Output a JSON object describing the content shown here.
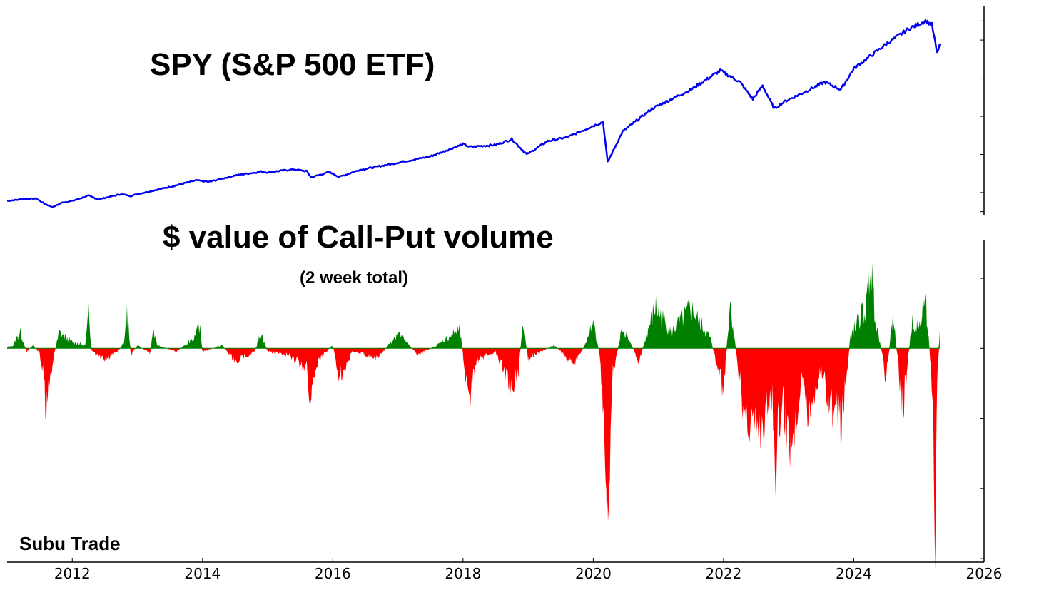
{
  "watermark": "Subu Trade",
  "chart_data": [
    {
      "type": "line",
      "title": "SPY (S&P 500 ETF)",
      "color": "#0000ee",
      "xlim": [
        2011.0,
        2026.0
      ],
      "ylim": [
        90,
        640
      ],
      "x": [
        2011.0,
        2011.25,
        2011.45,
        2011.58,
        2011.7,
        2011.85,
        2012.0,
        2012.25,
        2012.4,
        2012.75,
        2012.9,
        2013.0,
        2013.5,
        2013.9,
        2014.1,
        2014.5,
        2014.9,
        2015.0,
        2015.4,
        2015.6,
        2015.67,
        2015.95,
        2016.1,
        2016.4,
        2016.9,
        2017.5,
        2018.0,
        2018.1,
        2018.5,
        2018.75,
        2018.98,
        2019.3,
        2019.6,
        2020.0,
        2020.15,
        2020.22,
        2020.45,
        2020.9,
        2021.5,
        2021.95,
        2022.25,
        2022.45,
        2022.6,
        2022.78,
        2022.95,
        2023.2,
        2023.55,
        2023.8,
        2024.0,
        2024.5,
        2024.85,
        2025.1,
        2025.2,
        2025.28,
        2025.32
      ],
      "y": [
        128,
        133,
        134,
        120,
        112,
        124,
        128,
        142,
        132,
        146,
        141,
        146,
        165,
        182,
        178,
        195,
        205,
        203,
        211,
        206,
        190,
        204,
        191,
        209,
        225,
        245,
        277,
        270,
        275,
        290,
        250,
        285,
        295,
        325,
        335,
        230,
        310,
        370,
        420,
        470,
        440,
        395,
        430,
        370,
        390,
        410,
        440,
        420,
        475,
        540,
        580,
        600,
        590,
        515,
        540
      ]
    },
    {
      "type": "area",
      "title": "$ value of Call-Put volume",
      "subtitle": "(2 week total)",
      "positive_color": "#008000",
      "negative_color": "#ff0000",
      "xlim": [
        2011.0,
        2026.0
      ],
      "ylim": [
        -3.05,
        1.55
      ],
      "xticks": [
        2012,
        2014,
        2016,
        2018,
        2020,
        2022,
        2024,
        2026
      ],
      "x": [
        2011.0,
        2011.1,
        2011.2,
        2011.3,
        2011.4,
        2011.5,
        2011.55,
        2011.6,
        2011.65,
        2011.72,
        2011.8,
        2012.0,
        2012.2,
        2012.25,
        2012.3,
        2012.5,
        2012.7,
        2012.8,
        2012.84,
        2012.9,
        2013.0,
        2013.2,
        2013.24,
        2013.3,
        2013.6,
        2013.9,
        2013.95,
        2014.0,
        2014.3,
        2014.5,
        2014.8,
        2014.9,
        2015.0,
        2015.3,
        2015.6,
        2015.66,
        2015.7,
        2015.8,
        2016.0,
        2016.1,
        2016.3,
        2016.7,
        2017.0,
        2017.3,
        2017.6,
        2017.95,
        2018.05,
        2018.1,
        2018.2,
        2018.5,
        2018.75,
        2018.85,
        2018.92,
        2019.0,
        2019.4,
        2019.7,
        2019.9,
        2020.0,
        2020.1,
        2020.18,
        2020.22,
        2020.3,
        2020.45,
        2020.7,
        2020.95,
        2021.2,
        2021.5,
        2021.8,
        2022.0,
        2022.1,
        2022.3,
        2022.5,
        2022.6,
        2022.75,
        2022.8,
        2022.9,
        2023.0,
        2023.1,
        2023.2,
        2023.3,
        2023.5,
        2023.65,
        2023.8,
        2023.85,
        2023.95,
        2024.1,
        2024.2,
        2024.25,
        2024.35,
        2024.5,
        2024.6,
        2024.75,
        2024.9,
        2025.0,
        2025.1,
        2025.15,
        2025.22,
        2025.25,
        2025.28,
        2025.32
      ],
      "values": [
        0.02,
        0.05,
        0.28,
        -0.05,
        0.05,
        -0.08,
        -0.4,
        -1.1,
        -0.5,
        -0.1,
        0.25,
        0.1,
        0.05,
        0.52,
        -0.05,
        -0.2,
        -0.05,
        0.1,
        0.6,
        -0.1,
        0.05,
        -0.08,
        0.3,
        0.05,
        -0.05,
        0.2,
        0.38,
        -0.05,
        0.05,
        -0.2,
        -0.05,
        0.25,
        -0.05,
        -0.1,
        -0.3,
        -0.92,
        -0.4,
        -0.15,
        0.05,
        -0.45,
        -0.05,
        -0.15,
        0.25,
        -0.1,
        0.05,
        0.3,
        -0.5,
        -0.85,
        -0.2,
        -0.05,
        -0.6,
        -0.35,
        0.4,
        -0.15,
        0.05,
        -0.25,
        0.1,
        0.4,
        -0.1,
        -1.6,
        -2.6,
        -0.4,
        0.35,
        -0.2,
        0.65,
        0.25,
        0.62,
        0.15,
        -0.7,
        0.75,
        -1.0,
        -1.25,
        -1.2,
        -0.7,
        -1.75,
        -0.8,
        -1.4,
        -1.25,
        -0.35,
        -1.05,
        -0.3,
        -0.9,
        -1.25,
        -0.85,
        0.2,
        0.5,
        0.65,
        1.35,
        0.4,
        -0.5,
        0.55,
        -0.95,
        0.45,
        0.3,
        0.85,
        0.15,
        -0.8,
        -2.9,
        -0.5,
        0.25
      ]
    }
  ]
}
